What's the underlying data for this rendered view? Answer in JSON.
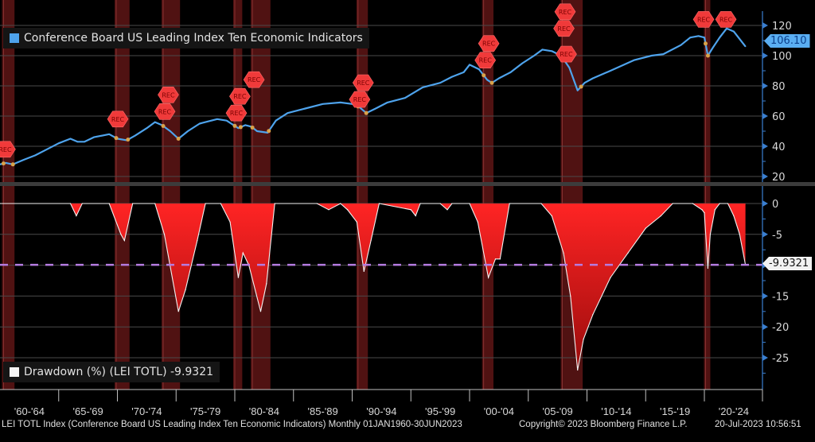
{
  "chart_data": [
    {
      "type": "line",
      "title": "Conference Board US Leading Index Ten Economic Indicators",
      "legend": "Conference Board US Leading Index Ten Economic Indicators",
      "legend_placement": "top-left",
      "ylim": [
        15,
        125
      ],
      "yticks": [
        20,
        40,
        60,
        80,
        100,
        120
      ],
      "last_value_label": "106.10",
      "color": "#4ea3ec",
      "x": [
        1960.0,
        1960.5,
        1961.1,
        1962,
        1963,
        1964,
        1965,
        1966.0,
        1966.6,
        1967.2,
        1968,
        1969.3,
        1970.0,
        1970.8,
        1971.5,
        1972.5,
        1973.2,
        1973.8,
        1974.5,
        1975.2,
        1976,
        1977,
        1978.5,
        1979.3,
        1980.3,
        1980.9,
        1981.4,
        1981.9,
        1982.8,
        1983.5,
        1984.5,
        1986,
        1987.5,
        1989.0,
        1990.0,
        1990.6,
        1991.2,
        1992,
        1993,
        1994.5,
        1996,
        1997.5,
        1998.5,
        1999.5,
        2000.0,
        2000.8,
        2001.5,
        2001.9,
        2002.5,
        2003.5,
        2004.5,
        2005.5,
        2006.2,
        2007.0,
        2007.8,
        2008.5,
        2009.2,
        2009.8,
        2010.5,
        2012,
        2014,
        2015.5,
        2016.5,
        2018,
        2018.8,
        2019.5,
        2020.0,
        2020.3,
        2020.7,
        2021.3,
        2021.9,
        2022.5,
        2023.0,
        2023.5
      ],
      "values": [
        28,
        29,
        28,
        31,
        34,
        38,
        42,
        45,
        43,
        43,
        46,
        48,
        45,
        44,
        47,
        52,
        56,
        54,
        50,
        45,
        50,
        55,
        58,
        57,
        52,
        54,
        53,
        50,
        49,
        57,
        62,
        65,
        68,
        69,
        68,
        66,
        62,
        65,
        69,
        72,
        79,
        82,
        86,
        89,
        94,
        91,
        84,
        82,
        85,
        89,
        95,
        100,
        104,
        103,
        100,
        92,
        77,
        82,
        85,
        90,
        97,
        100,
        101,
        107,
        112,
        113,
        112,
        100,
        105,
        112,
        118,
        116,
        111,
        106.1
      ]
    },
    {
      "type": "area",
      "title": "Drawdown (%) (LEI TOTL)",
      "legend": "Drawdown (%) (LEI TOTL) -9.9321",
      "legend_placement": "bottom-left",
      "ylim": [
        -30,
        1.5
      ],
      "yticks": [
        0,
        -5,
        -10,
        -15,
        -20,
        -25
      ],
      "ytick_labels": [
        "0",
        "-5",
        "",
        "-15",
        "-20",
        "-25"
      ],
      "reference_line": -9.9321,
      "last_value_label": "-9.9321",
      "x": [
        1960.0,
        1966.0,
        1966.5,
        1967.0,
        1969.3,
        1970.3,
        1970.6,
        1971.3,
        1973.2,
        1974.0,
        1975.2,
        1975.8,
        1976.8,
        1977.5,
        1978.8,
        1979.6,
        1980.3,
        1980.7,
        1981.2,
        1982.2,
        1982.7,
        1983.4,
        1987.0,
        1988.0,
        1989.0,
        1989.6,
        1990.4,
        1991.0,
        1991.6,
        1992.3,
        1995.0,
        1995.4,
        1995.8,
        1997.5,
        1998.1,
        1998.5,
        2000.0,
        2000.7,
        2001.6,
        2002.2,
        2002.6,
        2003.4,
        2006.1,
        2007.0,
        2008.0,
        2008.6,
        2009.2,
        2009.7,
        2010.5,
        2012.0,
        2013.5,
        2015.0,
        2016.3,
        2017.3,
        2019.0,
        2019.8,
        2020.0,
        2020.3,
        2020.5,
        2020.9,
        2021.3,
        2022.0,
        2022.5,
        2023.0,
        2023.5
      ],
      "values": [
        0,
        0,
        -2,
        0,
        0,
        -5,
        -6,
        0,
        0,
        -5,
        -17.5,
        -14,
        -6,
        0,
        0,
        -3,
        -12,
        -8,
        -10,
        -17.5,
        -13,
        0,
        0,
        -1,
        0,
        -1,
        -3,
        -11,
        -6,
        0,
        -1,
        -2,
        0,
        0,
        -1,
        0,
        0,
        -3,
        -12,
        -9,
        -9,
        0,
        0,
        -2,
        -8,
        -15,
        -27,
        -22,
        -18,
        -12,
        -8,
        -4,
        -2,
        0,
        0,
        -1,
        -1.5,
        -10.5,
        -5,
        -1,
        0,
        0,
        -2,
        -5,
        -9.9321
      ]
    },
    {
      "type": "bands",
      "title": "Recessions",
      "band_label": "REC",
      "color": "#6b1818",
      "periods": [
        [
          1960.3,
          1961.1
        ],
        [
          1969.9,
          1970.9
        ],
        [
          1973.9,
          1975.2
        ],
        [
          1980.0,
          1980.5
        ],
        [
          1981.5,
          1982.9
        ],
        [
          1990.5,
          1991.2
        ],
        [
          2001.2,
          2001.9
        ],
        [
          2007.9,
          2009.5
        ],
        [
          2020.1,
          2020.3
        ]
      ],
      "markers": [
        [
          1960.3,
          38
        ],
        [
          1969.9,
          58
        ],
        [
          1973.9,
          63
        ],
        [
          1974.2,
          58
        ],
        [
          1980.0,
          62
        ],
        [
          1980.3,
          64
        ],
        [
          1981.5,
          62
        ],
        [
          1990.5,
          71
        ],
        [
          1990.8,
          74
        ],
        [
          2001.2,
          97
        ],
        [
          2001.5,
          99
        ],
        [
          2007.9,
          118
        ],
        [
          2008.0,
          107
        ],
        [
          2008.1,
          101
        ],
        [
          2019.8,
          124
        ],
        [
          2020.5,
          124
        ]
      ]
    }
  ],
  "xaxis": {
    "labels": [
      "'60-'64",
      "'65-'69",
      "'70-'74",
      "'75-'79",
      "'80-'84",
      "'85-'89",
      "'90-'94",
      "'95-'99",
      "'00-'04",
      "'05-'09",
      "'10-'14",
      "'15-'19",
      "'20-'24"
    ]
  },
  "footer": {
    "left": "LEI TOTL Index (Conference Board US Leading Index Ten Economic Indicators)  Monthly 01JAN1960-30JUN2023",
    "copyright": "Copyright© 2023 Bloomberg Finance L.P.",
    "timestamp": "20-Jul-2023 10:56:51"
  },
  "colors": {
    "line": "#4ea3ec",
    "fill_top": "#ff2222",
    "fill_bottom": "#a40e0e",
    "axis": "#3a7fd0",
    "ref": "#b57be0"
  }
}
